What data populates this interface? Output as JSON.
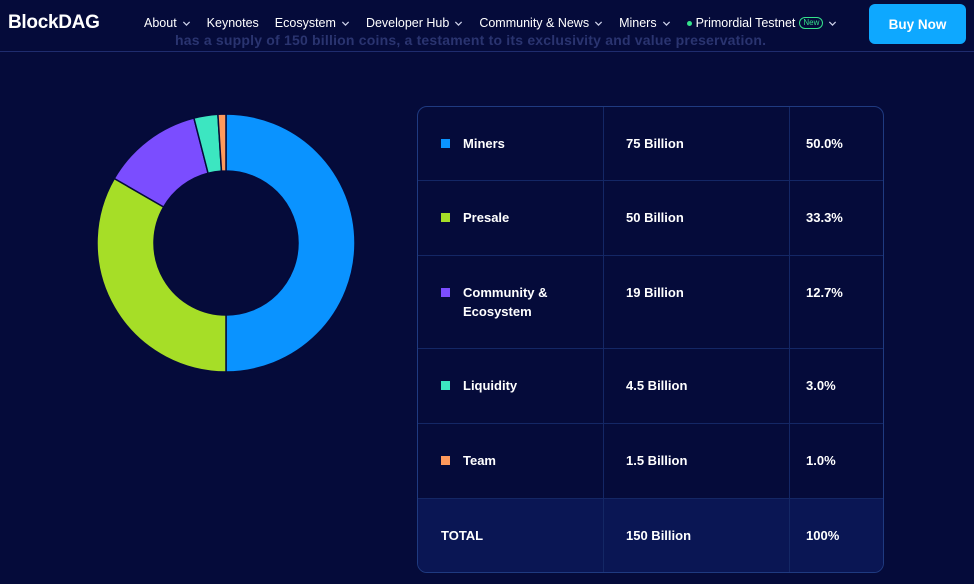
{
  "nav": {
    "logo": "BlockDAG",
    "menu": [
      {
        "label": "About",
        "chevron": true
      },
      {
        "label": "Keynotes",
        "chevron": false
      },
      {
        "label": "Ecosystem",
        "chevron": true
      },
      {
        "label": "Developer Hub",
        "chevron": true
      },
      {
        "label": "Community & News",
        "chevron": true
      },
      {
        "label": "Miners",
        "chevron": true
      }
    ],
    "testnet": {
      "label": "Primordial Testnet",
      "badge": "New"
    },
    "buy_button": "Buy Now"
  },
  "ghost_text": "has a supply of 150 billion coins, a testament to its exclusivity and value preservation.",
  "colors": {
    "background": "#050b3a",
    "accent": "#0ea8ff",
    "miners": "#0a93ff",
    "presale": "#a6de27",
    "community": "#7b4dff",
    "liquidity": "#3ce6c1",
    "team": "#ff9a5c"
  },
  "chart_data": {
    "type": "pie",
    "style": "donut",
    "categories": [
      "Miners",
      "Presale",
      "Community & Ecosystem",
      "Liquidity",
      "Team"
    ],
    "values": [
      75,
      50,
      19,
      4.5,
      1.5
    ],
    "colors": [
      "#0a93ff",
      "#a6de27",
      "#7b4dff",
      "#3ce6c1",
      "#ff9a5c"
    ]
  },
  "table": {
    "rows": [
      {
        "name": "Miners",
        "amount": "75 Billion",
        "percent": "50.0%",
        "color": "#0a93ff"
      },
      {
        "name": "Presale",
        "amount": "50 Billion",
        "percent": "33.3%",
        "color": "#a6de27"
      },
      {
        "name": "Community & Ecosystem",
        "amount": "19 Billion",
        "percent": "12.7%",
        "color": "#7b4dff"
      },
      {
        "name": "Liquidity",
        "amount": "4.5 Billion",
        "percent": "3.0%",
        "color": "#3ce6c1"
      },
      {
        "name": "Team",
        "amount": "1.5 Billion",
        "percent": "1.0%",
        "color": "#ff9a5c"
      }
    ],
    "total": {
      "name": "TOTAL",
      "amount": "150 Billion",
      "percent": "100%"
    }
  }
}
